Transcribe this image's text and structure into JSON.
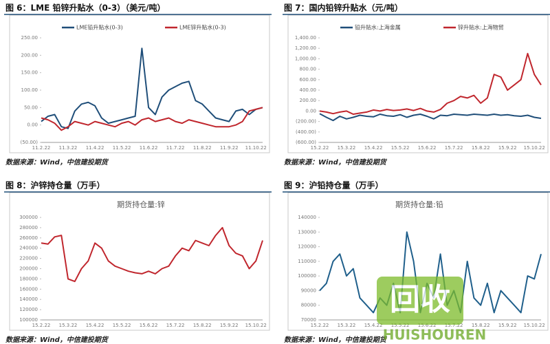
{
  "chart_data": [
    {
      "type": "line",
      "title": "图 6：LME 铅锌升贴水（0-3）（美元/吨）",
      "source": "数据来源：Wind，中信建投期货",
      "categories": [
        "11.2.22",
        null,
        null,
        null,
        "11.3.22",
        null,
        null,
        null,
        "11.4.22",
        null,
        null,
        null,
        "11.5.22",
        null,
        null,
        null,
        "11.6.22",
        null,
        null,
        null,
        "11.7.22",
        null,
        null,
        null,
        "11.8.22",
        null,
        null,
        null,
        "11.9.22",
        null,
        null,
        null,
        "11.10.22",
        null
      ],
      "series": [
        {
          "name": "LME铅升贴水(0-3)",
          "color": "#1f4e79",
          "values": [
            10,
            25,
            30,
            -5,
            -10,
            40,
            60,
            65,
            55,
            20,
            5,
            10,
            15,
            20,
            25,
            220,
            50,
            30,
            80,
            100,
            110,
            120,
            125,
            70,
            60,
            40,
            20,
            15,
            10,
            40,
            45,
            30,
            45,
            50
          ]
        },
        {
          "name": "LME锌升贴水(0-3)",
          "color": "#c0262d",
          "values": [
            20,
            15,
            5,
            -15,
            -5,
            10,
            5,
            0,
            10,
            5,
            0,
            -5,
            5,
            10,
            0,
            15,
            20,
            10,
            15,
            20,
            10,
            5,
            15,
            10,
            5,
            0,
            -5,
            -5,
            -5,
            0,
            10,
            40,
            45,
            50
          ]
        }
      ],
      "ylim": [
        -50,
        250
      ],
      "yticks": [
        {
          "value": -50,
          "label": "(50.00)"
        },
        {
          "value": 0,
          "label": "0.00"
        },
        {
          "value": 50,
          "label": "50.00"
        },
        {
          "value": 100,
          "label": "100.00"
        },
        {
          "value": 150,
          "label": "150.00"
        },
        {
          "value": 200,
          "label": "200.00"
        },
        {
          "value": 250,
          "label": "250.00"
        }
      ],
      "grid": false
    },
    {
      "type": "line",
      "title": "图 7：国内铅锌升贴水（元/吨）",
      "source": "数据来源：Wind，中信建投期货",
      "categories": [
        "15.2.22",
        null,
        null,
        null,
        "15.3.22",
        null,
        null,
        null,
        "15.4.22",
        null,
        null,
        null,
        "15.5.22",
        null,
        null,
        null,
        "15.6.22",
        null,
        null,
        null,
        "15.7.22",
        null,
        null,
        null,
        "15.8.22",
        null,
        null,
        null,
        "15.9.22",
        null,
        null,
        null,
        "15.10.22",
        null
      ],
      "series": [
        {
          "name": "铅升贴水:上海金属",
          "color": "#1f4e79",
          "values": [
            -50,
            -120,
            -180,
            -100,
            -150,
            -120,
            -80,
            -100,
            -110,
            -60,
            -90,
            -100,
            -70,
            -120,
            -80,
            -60,
            -100,
            -150,
            -80,
            -90,
            -60,
            -70,
            -80,
            -60,
            -70,
            -80,
            -60,
            -80,
            -70,
            -90,
            -100,
            -80,
            -120,
            -140
          ]
        },
        {
          "name": "锌升贴水:上海物贸",
          "color": "#c0262d",
          "values": [
            0,
            -20,
            -50,
            -20,
            0,
            -60,
            -40,
            -20,
            20,
            0,
            30,
            10,
            20,
            40,
            10,
            50,
            0,
            -20,
            30,
            150,
            200,
            280,
            250,
            300,
            150,
            250,
            700,
            650,
            400,
            500,
            600,
            1100,
            700,
            500
          ]
        }
      ],
      "ylim": [
        -600,
        1400
      ],
      "yticks": [
        {
          "value": -600,
          "label": "(600.00)"
        },
        {
          "value": -400,
          "label": "(400.00)"
        },
        {
          "value": -200,
          "label": "(200.00)"
        },
        {
          "value": 0,
          "label": "0.00"
        },
        {
          "value": 200,
          "label": "200.00"
        },
        {
          "value": 400,
          "label": "400.00"
        },
        {
          "value": 600,
          "label": "600.00"
        },
        {
          "value": 800,
          "label": "800.00"
        },
        {
          "value": 1000,
          "label": "1,000.00"
        },
        {
          "value": 1200,
          "label": "1,200.00"
        },
        {
          "value": 1400,
          "label": "1,400.00"
        }
      ],
      "grid": false
    },
    {
      "type": "line",
      "title": "图 8：沪锌持仓量（万手）",
      "subtitle": "期货持仓量:锌",
      "source": "数据来源：Wind，中信建投期货",
      "categories": [
        "15.2.22",
        null,
        null,
        null,
        "15.3.22",
        null,
        null,
        null,
        "15.4.22",
        null,
        null,
        null,
        "15.5.22",
        null,
        null,
        null,
        "15.6.22",
        null,
        null,
        null,
        "15.7.22",
        null,
        null,
        null,
        "15.8.22",
        null,
        null,
        null,
        "15.9.22",
        null,
        null,
        null,
        "15.10.22",
        null
      ],
      "series": [
        {
          "color": "#c0262d",
          "values": [
            250000,
            248000,
            262000,
            265000,
            180000,
            175000,
            200000,
            215000,
            250000,
            240000,
            215000,
            205000,
            200000,
            195000,
            192000,
            190000,
            195000,
            190000,
            200000,
            205000,
            225000,
            240000,
            235000,
            255000,
            250000,
            245000,
            265000,
            280000,
            245000,
            230000,
            225000,
            200000,
            215000,
            255000
          ]
        }
      ],
      "ylim": [
        100000,
        300000
      ],
      "yticks": [
        100000,
        120000,
        140000,
        160000,
        180000,
        200000,
        220000,
        240000,
        260000,
        280000,
        300000
      ],
      "grid": false
    },
    {
      "type": "line",
      "title": "图 9：沪铅持仓量（万手）",
      "subtitle": "期货持仓量:铅",
      "source": "数据来源：Wind，中信建投期货",
      "categories": [
        "15.2.22",
        null,
        null,
        null,
        "15.3.22",
        null,
        null,
        null,
        "15.4.22",
        null,
        null,
        null,
        "15.5.22",
        null,
        null,
        null,
        "15.6.22",
        null,
        null,
        null,
        "15.7.22",
        null,
        null,
        null,
        "15.8.22",
        null,
        null,
        null,
        "15.9.22",
        null,
        null,
        null,
        "15.10.22",
        null
      ],
      "series": [
        {
          "color": "#1f5f8b",
          "values": [
            90000,
            95000,
            110000,
            115000,
            100000,
            105000,
            85000,
            80000,
            75000,
            85000,
            80000,
            95000,
            75000,
            130000,
            110000,
            75000,
            95000,
            85000,
            115000,
            80000,
            90000,
            75000,
            110000,
            85000,
            80000,
            95000,
            75000,
            90000,
            85000,
            80000,
            75000,
            100000,
            98000,
            115000
          ]
        }
      ],
      "ylim": [
        70000,
        140000
      ],
      "yticks": [
        70000,
        80000,
        90000,
        100000,
        110000,
        120000,
        130000,
        140000
      ],
      "grid": false
    }
  ],
  "watermark": {
    "logo": "回收",
    "text": "HUISHOUREN"
  }
}
